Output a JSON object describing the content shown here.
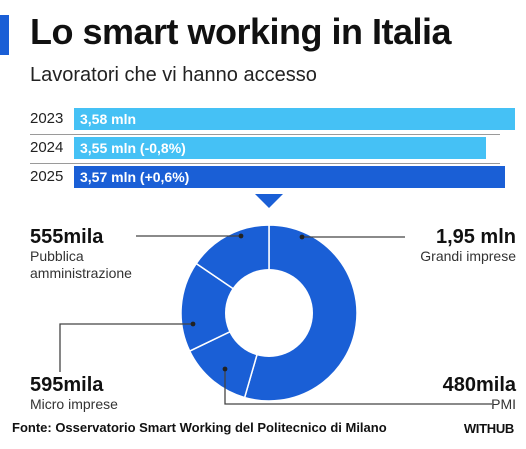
{
  "header": {
    "title": "Lo smart working in Italia",
    "subtitle": "Lavoratori che vi hanno accesso"
  },
  "colors": {
    "accent": "#1a5fd6",
    "bar_light": "#45c1f5",
    "bar_dark": "#1a5fd6",
    "donut": "#1a5fd6"
  },
  "chart_data": [
    {
      "type": "bar",
      "orientation": "horizontal",
      "categories": [
        "2023",
        "2024",
        "2025"
      ],
      "values": [
        3.58,
        3.55,
        3.57
      ],
      "unit": "mln",
      "labels": [
        "3,58 mln",
        "3,55 mln (-0,8%)",
        "3,57 mln (+0,6%)"
      ]
    },
    {
      "type": "pie",
      "style": "donut",
      "slices": [
        {
          "name": "Grandi imprese",
          "value": 1.95,
          "label": "1,95 mln"
        },
        {
          "name": "PMI",
          "value": 0.48,
          "label": "480mila"
        },
        {
          "name": "Micro imprese",
          "value": 0.595,
          "label": "595mila"
        },
        {
          "name": "Pubblica amministrazione",
          "value": 0.555,
          "label": "555mila"
        }
      ]
    }
  ],
  "footer": {
    "source": "Fonte: Osservatorio Smart Working del Politecnico di Milano",
    "brand": "WITHUB"
  }
}
